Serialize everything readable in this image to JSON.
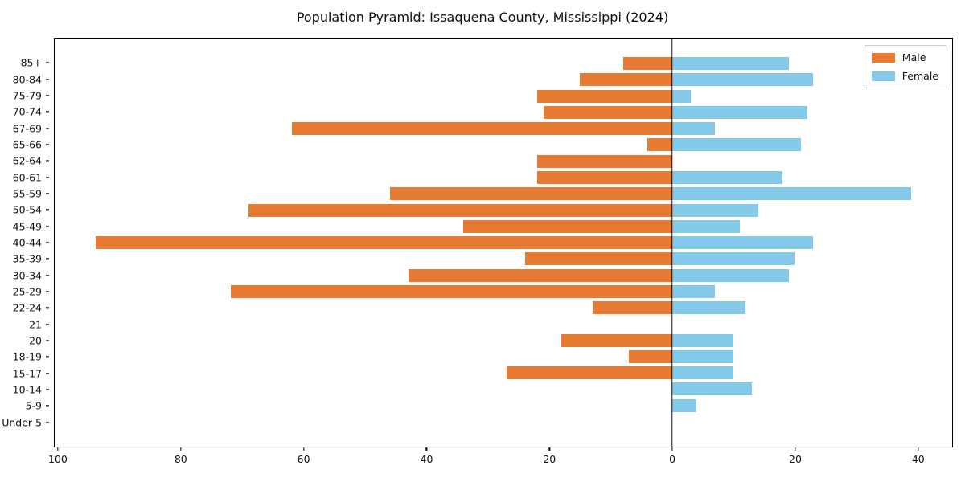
{
  "title": "Population Pyramid: Issaquena County, Mississippi (2024)",
  "legend": {
    "items": [
      {
        "label": "Male",
        "color": "#e87b33"
      },
      {
        "label": "Female",
        "color": "#85c9e8"
      }
    ]
  },
  "colors": {
    "male": "#e87b33",
    "female": "#85c9e8",
    "axis": "#000000",
    "legend_border": "#cccccc"
  },
  "chart_data": {
    "type": "bar",
    "subtype": "population-pyramid",
    "title": "Population Pyramid: Issaquena County, Mississippi (2024)",
    "categories": [
      "85+",
      "80-84",
      "75-79",
      "70-74",
      "67-69",
      "65-66",
      "62-64",
      "60-61",
      "55-59",
      "50-54",
      "45-49",
      "40-44",
      "35-39",
      "30-34",
      "25-29",
      "22-24",
      "21",
      "20",
      "18-19",
      "15-17",
      "10-14",
      "5-9",
      "Under 5"
    ],
    "series": [
      {
        "name": "Male",
        "side": "left",
        "color": "#e87b33",
        "values": [
          8,
          15,
          22,
          21,
          62,
          4,
          22,
          22,
          46,
          69,
          34,
          94,
          24,
          43,
          72,
          13,
          0,
          18,
          7,
          27,
          0,
          0,
          0
        ]
      },
      {
        "name": "Female",
        "side": "right",
        "color": "#85c9e8",
        "values": [
          19,
          23,
          3,
          22,
          7,
          21,
          0,
          18,
          39,
          14,
          11,
          23,
          20,
          19,
          7,
          12,
          0,
          10,
          10,
          10,
          13,
          4,
          0
        ]
      }
    ],
    "x_tick_values": [
      -100,
      -80,
      -60,
      -40,
      -20,
      0,
      20,
      40
    ],
    "x_tick_labels": [
      "100",
      "80",
      "60",
      "40",
      "20",
      "0",
      "20",
      "40"
    ],
    "xlim": [
      -100.65,
      45.65
    ],
    "grid": false,
    "legend_position": "upper right"
  }
}
